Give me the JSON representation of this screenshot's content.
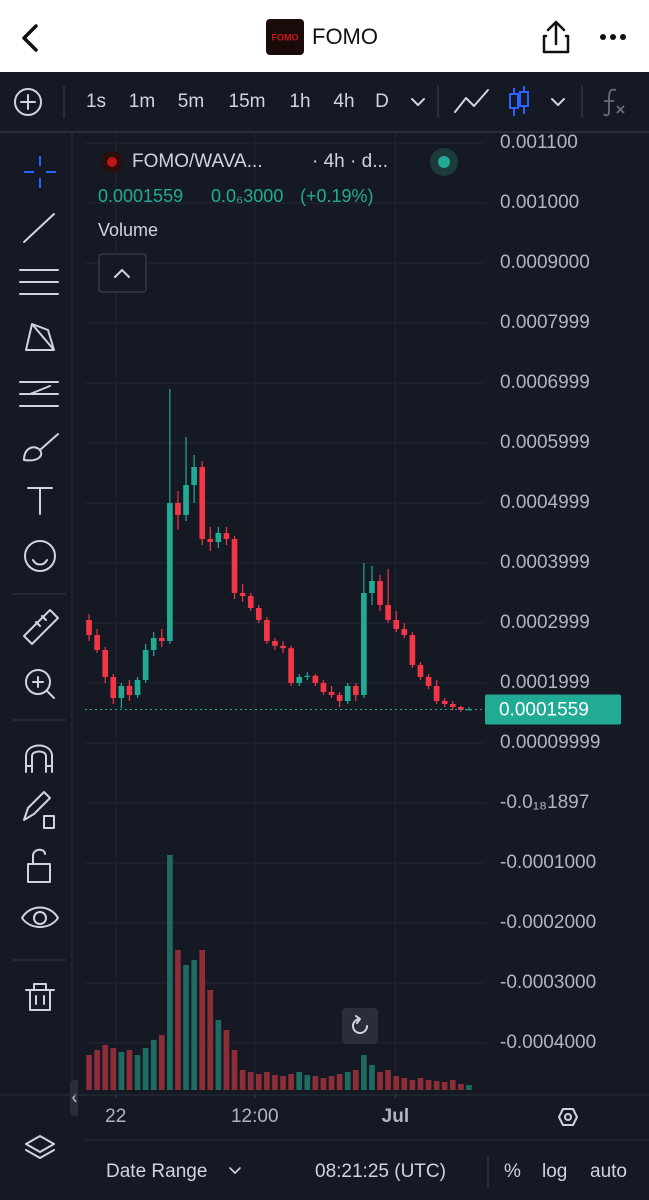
{
  "header": {
    "title": "FOMO",
    "logo": "FOMO"
  },
  "toolbar": {
    "intervals": [
      "1s",
      "1m",
      "5m",
      "15m",
      "1h",
      "4h",
      "D"
    ],
    "active": "4h"
  },
  "legend": {
    "symbol": "FOMO/WAVA...",
    "meta": "· 4h · d...",
    "price": "0.0001559",
    "change": "0.0₆3000",
    "change_pct": "(+0.19%)",
    "volume_title": "Volume"
  },
  "footer": {
    "date_range": "Date Range",
    "time": "08:21:25 (UTC)",
    "percent": "%",
    "log": "log",
    "auto": "auto"
  },
  "chart_data": {
    "type": "candlestick",
    "up_color": "#22ab94",
    "down_color": "#f23645",
    "volume_up_color": "#1e6b61",
    "volume_down_color": "#8c2d38",
    "grid": true,
    "xlim": [
      0,
      48
    ],
    "xticks": [
      {
        "value": 3.8,
        "label": "22"
      },
      {
        "value": 21.0,
        "label": "12:00"
      },
      {
        "value": 38.4,
        "label": "Jul"
      }
    ],
    "ylim": [
      -0.0004867,
      0.0011167
    ],
    "yticks": [
      {
        "value": 0.0011,
        "label": "0.001100"
      },
      {
        "value": 0.001,
        "label": "0.001000"
      },
      {
        "value": 0.0009,
        "label": "0.0009000"
      },
      {
        "value": 0.0008,
        "label": "0.0007999"
      },
      {
        "value": 0.0007,
        "label": "0.0006999"
      },
      {
        "value": 0.0006,
        "label": "0.0005999"
      },
      {
        "value": 0.0005,
        "label": "0.0004999"
      },
      {
        "value": 0.0004,
        "label": "0.0003999"
      },
      {
        "value": 0.0003,
        "label": "0.0002999"
      },
      {
        "value": 0.0002,
        "label": "0.0001999"
      },
      {
        "value": 0.0001,
        "label": "0.00009999"
      },
      {
        "value": 0,
        "label": "-0.0₁₈1897"
      },
      {
        "value": -0.0001,
        "label": "-0.0001000"
      },
      {
        "value": -0.0002,
        "label": "-0.0002000"
      },
      {
        "value": -0.0003,
        "label": "-0.0003000"
      },
      {
        "value": -0.0004,
        "label": "-0.0004000"
      }
    ],
    "last_price": 0.0001559,
    "open": [
      0.000305,
      0.00028,
      0.000255,
      0.00021,
      0.000175,
      0.000195,
      0.00018,
      0.000205,
      0.000255,
      0.000275,
      0.00027,
      0.0005,
      0.00048,
      0.00053,
      0.00056,
      0.00044,
      0.000435,
      0.00045,
      0.00044,
      0.00035,
      0.000345,
      0.000325,
      0.000305,
      0.00027,
      0.000262,
      0.000258,
      0.0002,
      0.00021,
      0.000212,
      0.0002,
      0.000185,
      0.00018,
      0.00017,
      0.000195,
      0.00018,
      0.00035,
      0.00037,
      0.00033,
      0.000305,
      0.00029,
      0.00028,
      0.00023,
      0.00021,
      0.000195,
      0.00017,
      0.000165,
      0.00016,
      0.000155
    ],
    "high": [
      0.000315,
      0.00029,
      0.00026,
      0.000215,
      0.0002,
      0.000205,
      0.00021,
      0.000265,
      0.000285,
      0.00029,
      0.00069,
      0.00052,
      0.00061,
      0.00058,
      0.00057,
      0.00046,
      0.00046,
      0.00046,
      0.000445,
      0.000365,
      0.00035,
      0.00033,
      0.00031,
      0.000275,
      0.00027,
      0.000262,
      0.000215,
      0.000218,
      0.000215,
      0.000205,
      0.000195,
      0.000185,
      0.0002,
      0.0002,
      0.0004,
      0.000395,
      0.00038,
      0.00039,
      0.00032,
      0.0003,
      0.000285,
      0.000235,
      0.000215,
      0.000205,
      0.000175,
      0.00017,
      0.000162,
      0.00016
    ],
    "low": [
      0.00027,
      0.00025,
      0.0002,
      0.000165,
      0.000158,
      0.00017,
      0.000175,
      0.0002,
      0.000245,
      0.00026,
      0.000265,
      0.000455,
      0.00047,
      0.0005,
      0.00043,
      0.00042,
      0.000425,
      0.00043,
      0.00034,
      0.000335,
      0.00032,
      0.0003,
      0.000265,
      0.000255,
      0.00025,
      0.000195,
      0.000195,
      0.000205,
      0.000195,
      0.00018,
      0.000175,
      0.00016,
      0.000165,
      0.00017,
      0.000175,
      0.00033,
      0.00032,
      0.0003,
      0.000285,
      0.000275,
      0.000225,
      0.000205,
      0.00019,
      0.000165,
      0.00016,
      0.000155,
      0.000152,
      0.000154
    ],
    "close": [
      0.00028,
      0.000255,
      0.00021,
      0.000175,
      0.000195,
      0.00018,
      0.000205,
      0.000255,
      0.000275,
      0.00027,
      0.0005,
      0.00048,
      0.00053,
      0.00056,
      0.00044,
      0.000435,
      0.00045,
      0.00044,
      0.00035,
      0.000345,
      0.000325,
      0.000305,
      0.00027,
      0.000262,
      0.000258,
      0.0002,
      0.00021,
      0.000212,
      0.0002,
      0.000185,
      0.00018,
      0.00017,
      0.000195,
      0.00018,
      0.00035,
      0.00037,
      0.00033,
      0.000305,
      0.00029,
      0.00028,
      0.00023,
      0.00021,
      0.000195,
      0.00017,
      0.000165,
      0.00016,
      0.000155,
      0.000156
    ],
    "volume": [
      35,
      40,
      45,
      42,
      38,
      40,
      35,
      42,
      50,
      55,
      235,
      140,
      125,
      130,
      140,
      100,
      70,
      60,
      40,
      20,
      18,
      16,
      18,
      15,
      14,
      16,
      18,
      15,
      14,
      12,
      14,
      16,
      18,
      20,
      35,
      25,
      18,
      20,
      14,
      12,
      10,
      12,
      10,
      9,
      8,
      10,
      6,
      5
    ]
  }
}
